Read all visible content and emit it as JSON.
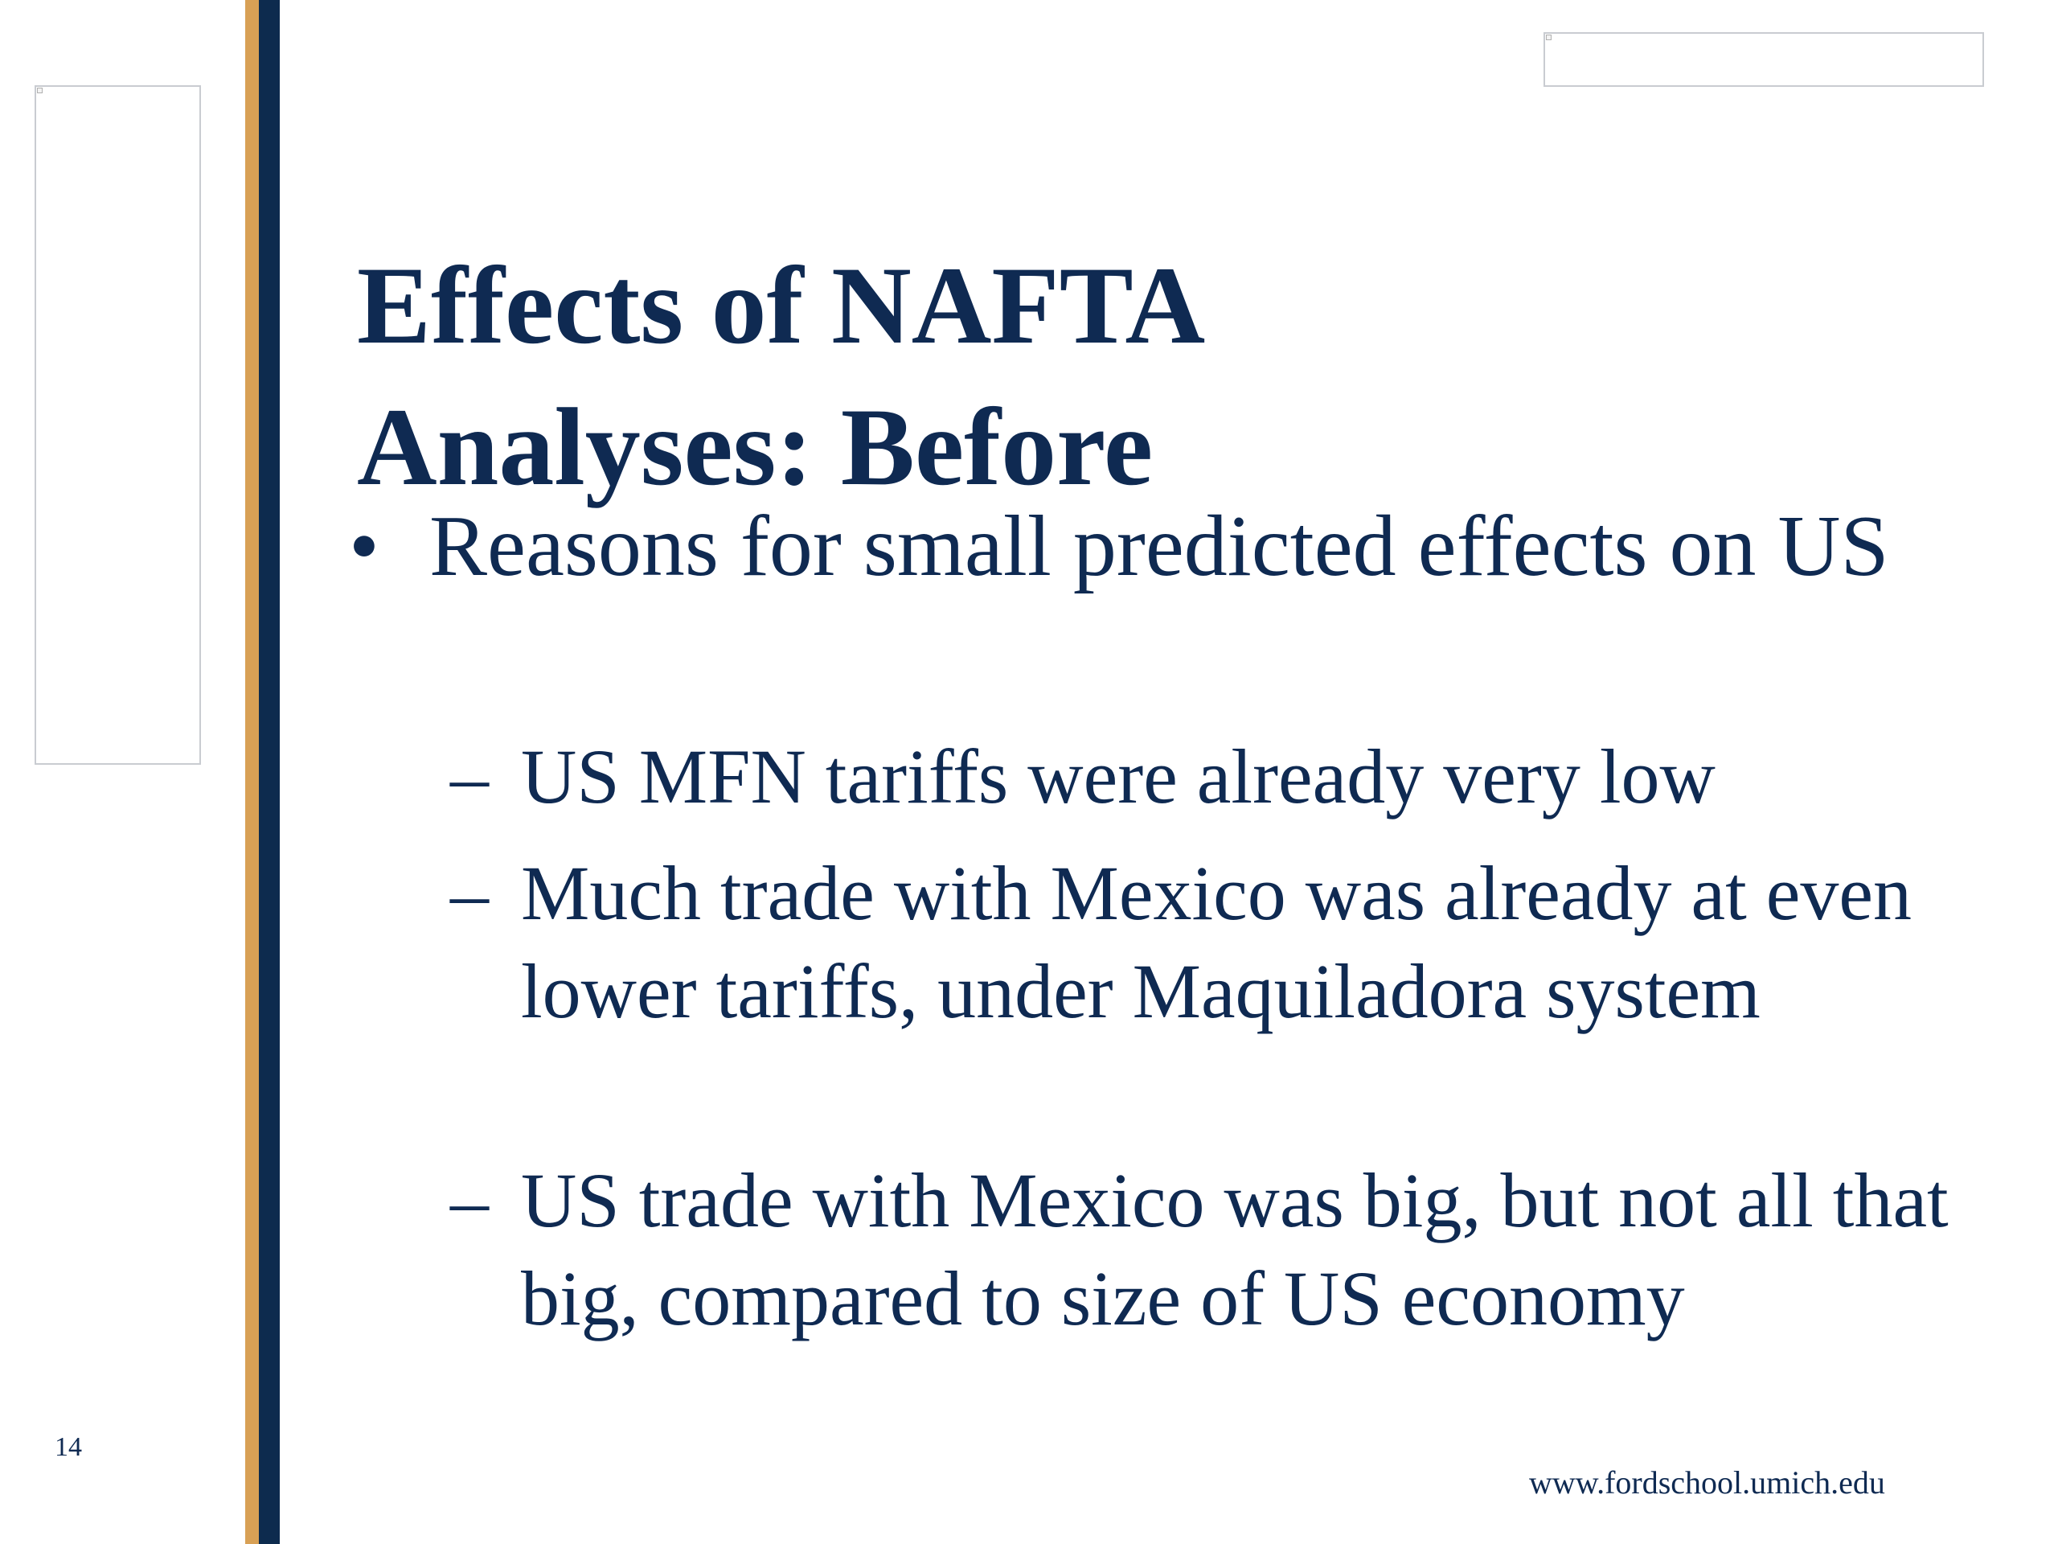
{
  "slide": {
    "number": "14",
    "title_line1": "Effects of NAFTA",
    "title_line2": "Analyses: Before",
    "bullet": {
      "marker": "•",
      "text": "Reasons for small predicted effects on US"
    },
    "sub_bullets": [
      {
        "marker": "–",
        "text": "US MFN tariffs were already very low"
      },
      {
        "marker": "–",
        "text": "Much trade with Mexico was already at even lower tariffs, under Maquiladora system"
      },
      {
        "marker": "–",
        "text": "US trade with Mexico was big, but not all that big, compared to size of US economy"
      }
    ],
    "url": "www.fordschool.umich.edu"
  },
  "colors": {
    "navy": "#0d2b4e",
    "gold": "#d8a055",
    "text": "#0f2a52"
  }
}
